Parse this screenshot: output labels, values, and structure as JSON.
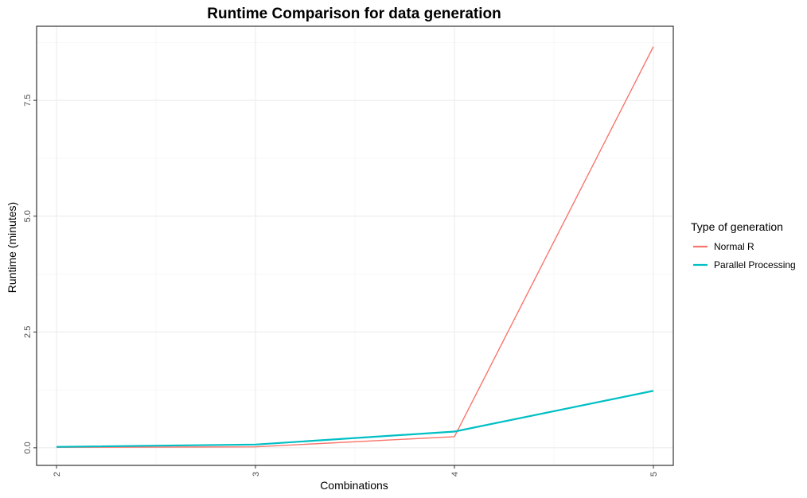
{
  "chart_data": {
    "type": "line",
    "title": "Runtime Comparison for data generation",
    "xlabel": "Combinations",
    "ylabel": "Runtime (minutes)",
    "x": [
      2,
      3,
      4,
      5
    ],
    "xlim": [
      2,
      5
    ],
    "ylim": [
      0,
      8.7
    ],
    "xticks": [
      "2",
      "3",
      "4",
      "5"
    ],
    "yticks": [
      "0.0",
      "2.5",
      "5.0",
      "7.5"
    ],
    "grid": true,
    "legend": {
      "title": "Type of generation",
      "position": "right"
    },
    "series": [
      {
        "name": "Normal R",
        "color": "#F8766D",
        "values": [
          0.01,
          0.02,
          0.24,
          8.66
        ]
      },
      {
        "name": "Parallel Processing",
        "color": "#00BFC4",
        "values": [
          0.02,
          0.07,
          0.35,
          1.23
        ]
      }
    ]
  }
}
